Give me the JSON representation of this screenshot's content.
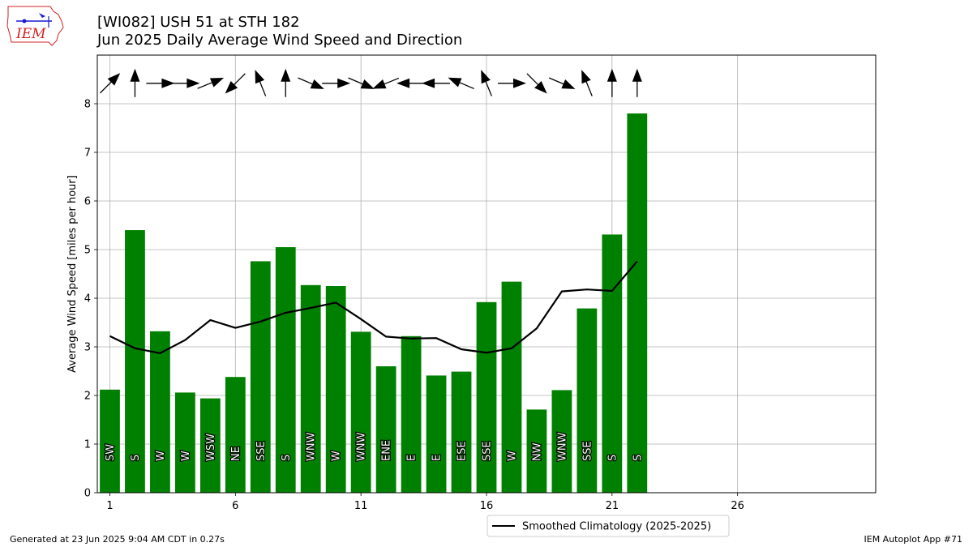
{
  "title_line1": "[WI082] USH 51 at STH 182",
  "title_line2": "Jun 2025 Daily Average Wind Speed and Direction",
  "logo_text": "IEM",
  "footer_left": "Generated at 23 Jun 2025 9:04 AM CDT in 0.27s",
  "footer_right": "IEM Autoplot App #71",
  "colors": {
    "bar": "#008000",
    "line": "#000000",
    "grid": "#b0b0b0",
    "logo": "#d42020"
  },
  "chart_data": {
    "type": "bar",
    "ylabel": "Average Wind Speed [miles per hour]",
    "xlabel": "",
    "xlim": [
      0.5,
      31.5
    ],
    "ylim": [
      0,
      9
    ],
    "xticks": [
      1,
      6,
      11,
      16,
      21,
      26
    ],
    "yticks": [
      0,
      1,
      2,
      3,
      4,
      5,
      6,
      7,
      8
    ],
    "grid": true,
    "legend_position": "bottom-center",
    "days": [
      1,
      2,
      3,
      4,
      5,
      6,
      7,
      8,
      9,
      10,
      11,
      12,
      13,
      14,
      15,
      16,
      17,
      18,
      19,
      20,
      21,
      22
    ],
    "avg_speed": [
      2.12,
      5.4,
      3.32,
      2.06,
      1.94,
      2.38,
      4.76,
      5.05,
      4.27,
      4.25,
      3.31,
      2.6,
      3.22,
      2.41,
      2.49,
      3.92,
      4.34,
      1.71,
      2.11,
      3.79,
      5.31,
      7.8
    ],
    "direction_labels": [
      "SW",
      "S",
      "W",
      "W",
      "WSW",
      "NE",
      "SSE",
      "S",
      "WNW",
      "W",
      "WNW",
      "ENE",
      "E",
      "E",
      "ESE",
      "SSE",
      "W",
      "NW",
      "WNW",
      "SSE",
      "S",
      "S"
    ],
    "direction_deg": [
      225,
      180,
      270,
      270,
      248,
      45,
      158,
      180,
      293,
      270,
      293,
      68,
      90,
      90,
      113,
      158,
      270,
      315,
      293,
      158,
      180,
      180
    ],
    "climatology": {
      "name": "Smoothed Climatology (2025-2025)",
      "values": [
        3.22,
        2.97,
        2.87,
        3.14,
        3.55,
        3.39,
        3.52,
        3.7,
        3.8,
        3.91,
        3.57,
        3.21,
        3.17,
        3.18,
        2.95,
        2.88,
        2.97,
        3.38,
        4.14,
        4.18,
        4.15,
        4.76
      ]
    }
  }
}
